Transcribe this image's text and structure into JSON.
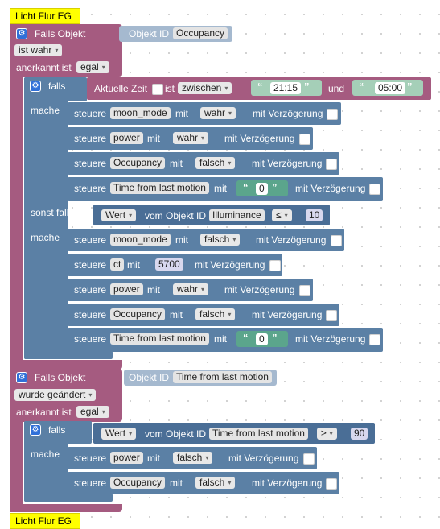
{
  "hat_top": "Licht Flur EG",
  "hat_bottom": "Licht Flur EG",
  "falls_objekt_label": "Falls Objekt",
  "objekt_id_label": "Objekt ID",
  "ist_wahr": "ist wahr",
  "wurde_geaendert": "wurde geändert",
  "anerkannt_ist": "anerkannt ist",
  "egal": "egal",
  "falls": "falls",
  "mache": "mache",
  "sonst_falls": "sonst falls",
  "steuere": "steuere",
  "mit": "mit",
  "mit_verzoegerung": "mit Verzögerung",
  "aktuelle_zeit": "Aktuelle Zeit",
  "ist": "ist",
  "zwischen": "zwischen",
  "und": "und",
  "time1": "21:15",
  "time2": "05:00",
  "wert": "Wert",
  "vom_objekt_id": "vom Objekt ID",
  "block1": {
    "object": "Occupancy",
    "rows_a": [
      {
        "target": "moon_mode",
        "value": "wahr"
      },
      {
        "target": "power",
        "value": "wahr"
      },
      {
        "target": "Occupancy",
        "value": "falsch"
      },
      {
        "target": "Time from last motion",
        "value": "0"
      }
    ],
    "elseif_object": "Illuminance",
    "elseif_op": "≤",
    "elseif_value": "10",
    "rows_b": [
      {
        "target": "moon_mode",
        "value": "falsch"
      },
      {
        "target": "ct",
        "value": "5700"
      },
      {
        "target": "power",
        "value": "wahr"
      },
      {
        "target": "Occupancy",
        "value": "falsch"
      },
      {
        "target": "Time from last motion",
        "value": "0"
      }
    ]
  },
  "block2": {
    "object": "Time from last motion",
    "cond_object": "Time from last motion",
    "cond_op": "≥",
    "cond_value": "90",
    "rows": [
      {
        "target": "power",
        "value": "falsch"
      },
      {
        "target": "Occupancy",
        "value": "falsch"
      }
    ]
  }
}
